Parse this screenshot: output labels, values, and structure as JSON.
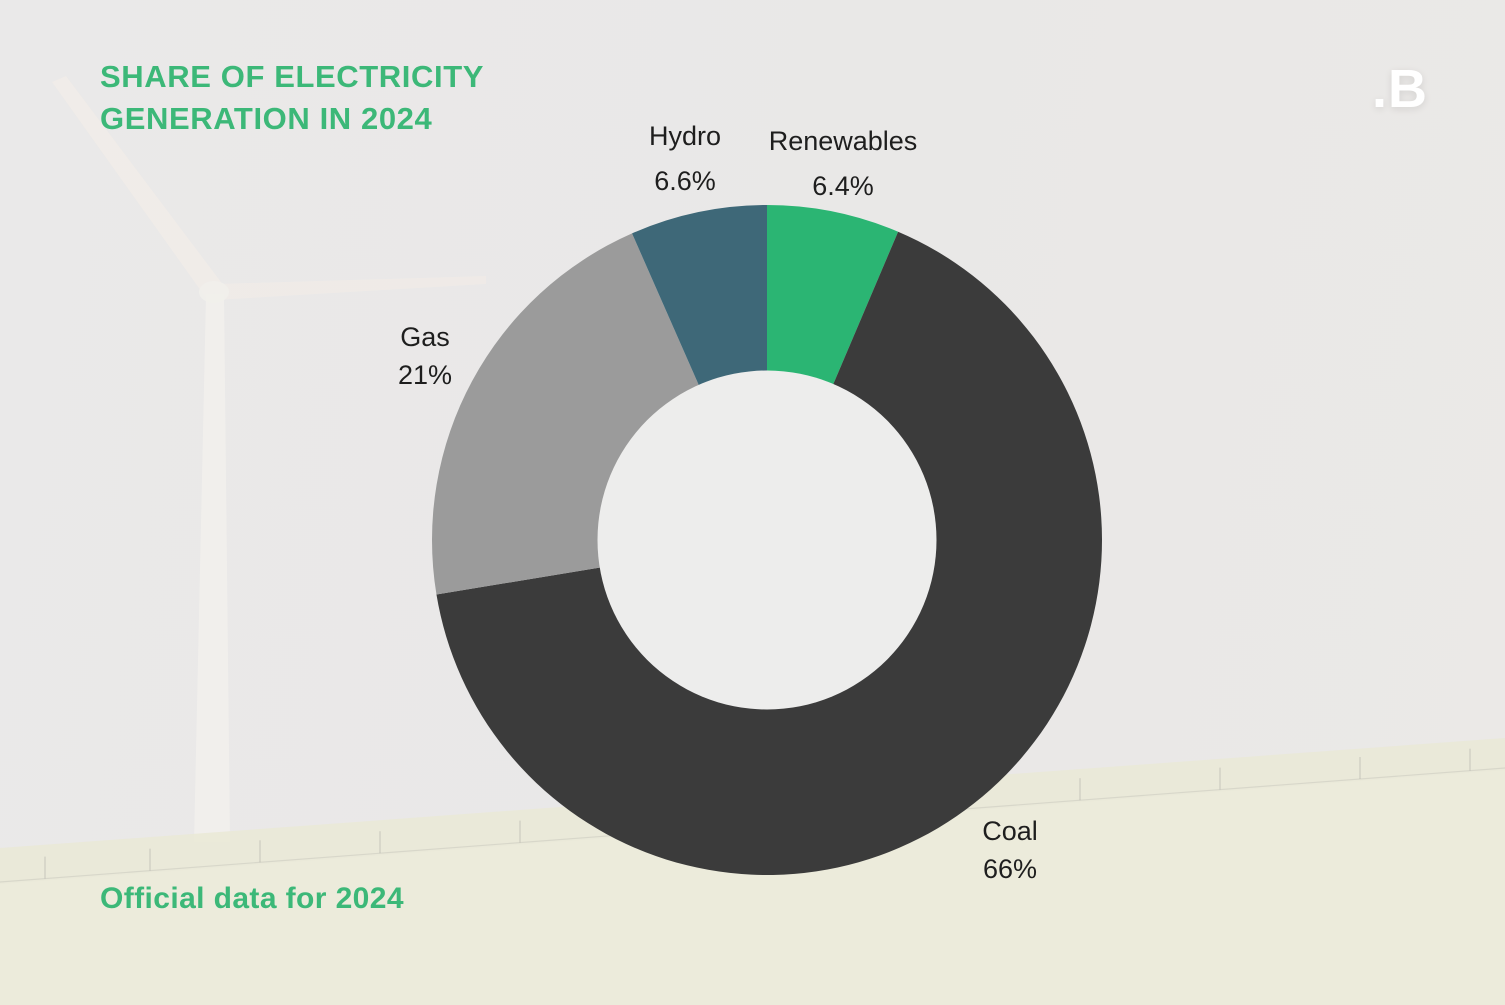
{
  "header": {
    "title_line1": "SHARE OF ELECTRICITY",
    "title_line2": "GENERATION IN 2024",
    "title_color": "#3cb878"
  },
  "logo": {
    "text": ".B",
    "color": "#ffffff"
  },
  "footer": {
    "text": "Official data for 2024",
    "color": "#3cb878"
  },
  "background": {
    "sky_color": "#e9e8e8",
    "grass_color": "#eae9d8",
    "turbine_color": "#f2ece8",
    "hole_color": "#ededec",
    "description": "faded photo of a wind turbine over a grassy hill"
  },
  "chart_data": {
    "type": "pie",
    "subtype": "donut",
    "title": "SHARE OF ELECTRICITY GENERATION IN 2024",
    "source_note": "Official data for 2024",
    "unit": "%",
    "start_angle": "top",
    "direction": "clockwise",
    "hole_ratio": 0.5,
    "legend_position": "labels-outside",
    "categories": [
      "Renewables",
      "Coal",
      "Gas",
      "Hydro"
    ],
    "values": [
      6.4,
      66,
      21,
      6.6
    ],
    "segments": [
      {
        "label": "Renewables",
        "value": 6.4,
        "display_value": "6.4%",
        "color": "#2bb573"
      },
      {
        "label": "Coal",
        "value": 66,
        "display_value": "66%",
        "color": "#3b3b3b"
      },
      {
        "label": "Gas",
        "value": 21,
        "display_value": "21%",
        "color": "#9b9b9b"
      },
      {
        "label": "Hydro",
        "value": 6.6,
        "display_value": "6.6%",
        "color": "#3e6878"
      }
    ]
  }
}
